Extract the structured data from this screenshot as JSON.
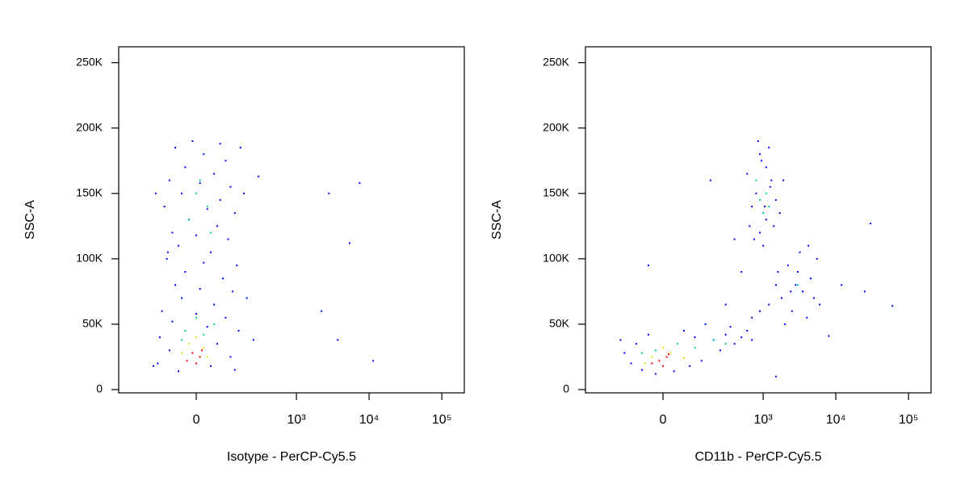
{
  "chart_data": [
    {
      "type": "scatter",
      "x_label": "Isotype - PerCP-Cy5.5",
      "y_label": "SSC-A",
      "xscale": "biexponential",
      "xlim": [
        -486,
        204000
      ],
      "ylim": [
        -2500,
        262144
      ],
      "xticks": [
        0,
        {
          "value": 1000,
          "label": "10³"
        },
        {
          "value": 10000,
          "label": "10⁴"
        },
        {
          "value": 100000,
          "label": "10⁵"
        }
      ],
      "yticks": [
        0,
        {
          "value": 50000,
          "label": "50K"
        },
        {
          "value": 100000,
          "label": "100K"
        },
        {
          "value": 150000,
          "label": "150K"
        },
        {
          "value": 200000,
          "label": "200K"
        },
        {
          "value": 250000,
          "label": "250K"
        }
      ],
      "series": [
        {
          "color": "#0000ff",
          "x": [
            -60,
            20,
            90,
            -30,
            50,
            -80,
            10,
            110,
            -40,
            70,
            -100,
            30,
            130,
            -20,
            60,
            -70,
            0,
            100,
            -50,
            40,
            -90,
            20,
            140,
            -30,
            80,
            -60,
            10,
            120,
            -40,
            50,
            -110,
            0,
            90,
            -70,
            30,
            150,
            -120,
            60,
            -80,
            110,
            -130,
            40,
            130,
            -50,
            295,
            2800,
            7400,
            5400,
            2220,
            3700,
            11400,
            -152,
            -86,
            250,
            200,
            180,
            -140,
            -10,
            70,
            160
          ],
          "values": [
            185000,
            180000,
            175000,
            170000,
            165000,
            160000,
            158000,
            155000,
            150000,
            145000,
            140000,
            138000,
            135000,
            130000,
            125000,
            120000,
            118000,
            115000,
            110000,
            105000,
            100000,
            97000,
            95000,
            90000,
            85000,
            80000,
            77000,
            75000,
            70000,
            65000,
            60000,
            58000,
            55000,
            52000,
            48000,
            45000,
            40000,
            35000,
            30000,
            25000,
            20000,
            18000,
            15000,
            14000,
            163000,
            150000,
            158000,
            112000,
            60000,
            38000,
            22000,
            18000,
            105000,
            38000,
            70000,
            150000,
            150000,
            190000,
            188000,
            185000
          ]
        },
        {
          "color": "#00d0a0",
          "x": [
            0,
            30,
            -20,
            10,
            40,
            -30,
            20,
            -40,
            50,
            0
          ],
          "values": [
            150000,
            140000,
            130000,
            160000,
            120000,
            45000,
            42000,
            38000,
            50000,
            55000
          ]
        },
        {
          "color": "#e8e800",
          "x": [
            -20,
            20,
            0,
            -40,
            30
          ],
          "values": [
            35000,
            32000,
            40000,
            28000,
            25000
          ]
        },
        {
          "color": "#ff0000",
          "x": [
            -10,
            10,
            -25,
            0,
            15
          ],
          "values": [
            28000,
            25000,
            22000,
            20000,
            30000
          ]
        }
      ]
    },
    {
      "type": "scatter",
      "x_label": "CD11b - PerCP-Cy5.5",
      "y_label": "SSC-A",
      "xscale": "biexponential",
      "xlim": [
        -486,
        204000
      ],
      "ylim": [
        -2500,
        262144
      ],
      "xticks": [
        0,
        {
          "value": 1000,
          "label": "10³"
        },
        {
          "value": 10000,
          "label": "10⁴"
        },
        {
          "value": 100000,
          "label": "10⁵"
        }
      ],
      "yticks": [
        0,
        {
          "value": 50000,
          "label": "50K"
        },
        {
          "value": 100000,
          "label": "100K"
        },
        {
          "value": 150000,
          "label": "150K"
        },
        {
          "value": 200000,
          "label": "200K"
        },
        {
          "value": 250000,
          "label": "250K"
        }
      ],
      "series": [
        {
          "color": "#0000ff",
          "x": [
            -100,
            -60,
            -20,
            30,
            80,
            130,
            -80,
            -40,
            60,
            100,
            200,
            300,
            400,
            500,
            600,
            150,
            250,
            350,
            700,
            -130,
            900,
            1100,
            800,
            1300,
            950,
            1200,
            700,
            1500,
            1000,
            600,
            850,
            1400,
            1700,
            750,
            1100,
            1250,
            650,
            1900,
            1050,
            900,
            1800,
            2500,
            3000,
            3500,
            4500,
            5500,
            2200,
            4000,
            6000,
            3200,
            1500,
            2000,
            5000,
            2800,
            4200,
            1200,
            900,
            700,
            1600,
            2400,
            500,
            400,
            -40,
            -150,
            30000,
            60000,
            25000,
            8000,
            12000,
            1500,
            300,
            180
          ],
          "values": [
            20000,
            15000,
            12000,
            14000,
            18000,
            22000,
            35000,
            42000,
            45000,
            40000,
            38000,
            42000,
            35000,
            40000,
            45000,
            50000,
            30000,
            48000,
            38000,
            28000,
            120000,
            130000,
            150000,
            160000,
            175000,
            185000,
            140000,
            145000,
            110000,
            165000,
            190000,
            125000,
            135000,
            115000,
            170000,
            155000,
            125000,
            160000,
            140000,
            180000,
            70000,
            60000,
            90000,
            75000,
            85000,
            100000,
            95000,
            55000,
            65000,
            105000,
            80000,
            50000,
            70000,
            80000,
            110000,
            65000,
            60000,
            55000,
            90000,
            75000,
            90000,
            115000,
            95000,
            38000,
            127000,
            64000,
            75000,
            41000,
            80000,
            10000,
            65000,
            160000
          ]
        },
        {
          "color": "#00d0a0",
          "x": [
            900,
            1100,
            1000,
            1200,
            800,
            3000,
            -20,
            40,
            100,
            200,
            -60,
            300
          ],
          "values": [
            145000,
            150000,
            135000,
            140000,
            160000,
            80000,
            30000,
            35000,
            32000,
            38000,
            28000,
            35000
          ]
        },
        {
          "color": "#e8e800",
          "x": [
            -30,
            20,
            -50,
            60,
            0
          ],
          "values": [
            25000,
            28000,
            20000,
            24000,
            32000
          ]
        },
        {
          "color": "#ff0000",
          "x": [
            -10,
            10,
            -30,
            0,
            15
          ],
          "values": [
            22000,
            25000,
            20000,
            18000,
            27000
          ]
        }
      ]
    }
  ]
}
